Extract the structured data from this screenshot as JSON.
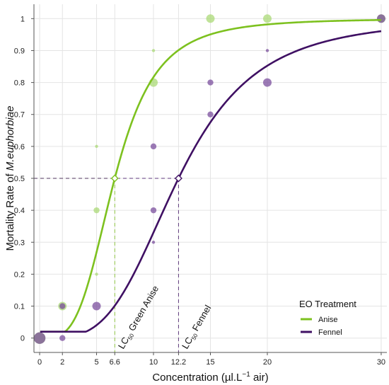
{
  "chart_data": {
    "type": "scatter",
    "xlabel_prefix": "Concentration (µl.L",
    "xlabel_sup": "−1",
    "xlabel_suffix": " air)",
    "ylabel_prefix": "Mortality Rate of ",
    "ylabel_species": "M.euphorbiae",
    "x_ticks": [
      0,
      2,
      5,
      6.6,
      10,
      12.2,
      15,
      20,
      30
    ],
    "x_tick_labels": [
      "0",
      "2",
      "5",
      "6.6",
      "10",
      "12.2",
      "15",
      "20",
      "30"
    ],
    "y_ticks": [
      0,
      0.1,
      0.2,
      0.3,
      0.4,
      0.5,
      0.6,
      0.7,
      0.8,
      0.9,
      1
    ],
    "y_tick_labels": [
      "0",
      "0.1",
      "0.2",
      "0.3",
      "0.4",
      "0.5",
      "0.6",
      "0.7",
      "0.8",
      "0.9",
      "1"
    ],
    "xlim": [
      -0.5,
      30.5
    ],
    "ylim": [
      -0.045,
      1.045
    ],
    "grid": true,
    "legend": {
      "title": "EO Treatment",
      "position": "bottom-right",
      "items": [
        {
          "label": "Anise",
          "color": "#7dc11f"
        },
        {
          "label": "Fennel",
          "color": "#3f1063"
        }
      ]
    },
    "series": [
      {
        "name": "Anise",
        "color": "#7dc11f",
        "point_color": "#a7d872",
        "curve": {
          "type": "logistic",
          "x50": 6.6,
          "slope": 3.6
        },
        "points": [
          {
            "x": 0,
            "y": 0,
            "size": 4
          },
          {
            "x": 2,
            "y": 0.1,
            "size": 3
          },
          {
            "x": 5,
            "y": 0.6,
            "size": 1
          },
          {
            "x": 5,
            "y": 0.4,
            "size": 2
          },
          {
            "x": 5,
            "y": 0.2,
            "size": 1
          },
          {
            "x": 10,
            "y": 0.9,
            "size": 1
          },
          {
            "x": 10,
            "y": 0.8,
            "size": 3
          },
          {
            "x": 15,
            "y": 1,
            "size": 3
          },
          {
            "x": 20,
            "y": 1,
            "size": 3
          },
          {
            "x": 30,
            "y": 1,
            "size": 3
          }
        ]
      },
      {
        "name": "Fennel",
        "color": "#3f1063",
        "point_color": "#76489a",
        "curve": {
          "type": "logistic",
          "x50": 12.2,
          "slope": 3.55
        },
        "points": [
          {
            "x": 0,
            "y": 0,
            "size": 4
          },
          {
            "x": 2,
            "y": 0,
            "size": 2
          },
          {
            "x": 2,
            "y": 0.1,
            "size": 2
          },
          {
            "x": 5,
            "y": 0.1,
            "size": 3
          },
          {
            "x": 10,
            "y": 0.6,
            "size": 2
          },
          {
            "x": 10,
            "y": 0.4,
            "size": 2
          },
          {
            "x": 10,
            "y": 0.3,
            "size": 1
          },
          {
            "x": 15,
            "y": 0.8,
            "size": 2
          },
          {
            "x": 15,
            "y": 0.7,
            "size": 2
          },
          {
            "x": 20,
            "y": 0.9,
            "size": 1
          },
          {
            "x": 20,
            "y": 0.8,
            "size": 3
          },
          {
            "x": 30,
            "y": 1,
            "size": 3
          }
        ]
      }
    ],
    "lc50": [
      {
        "series": "Anise",
        "x": 6.6,
        "y": 0.5,
        "label_main": "LC",
        "label_sub": "50",
        "label_rest": " Green Anise"
      },
      {
        "series": "Fennel",
        "x": 12.2,
        "y": 0.5,
        "label_main": "LC",
        "label_sub": "50",
        "label_rest": " Fennel"
      }
    ]
  }
}
